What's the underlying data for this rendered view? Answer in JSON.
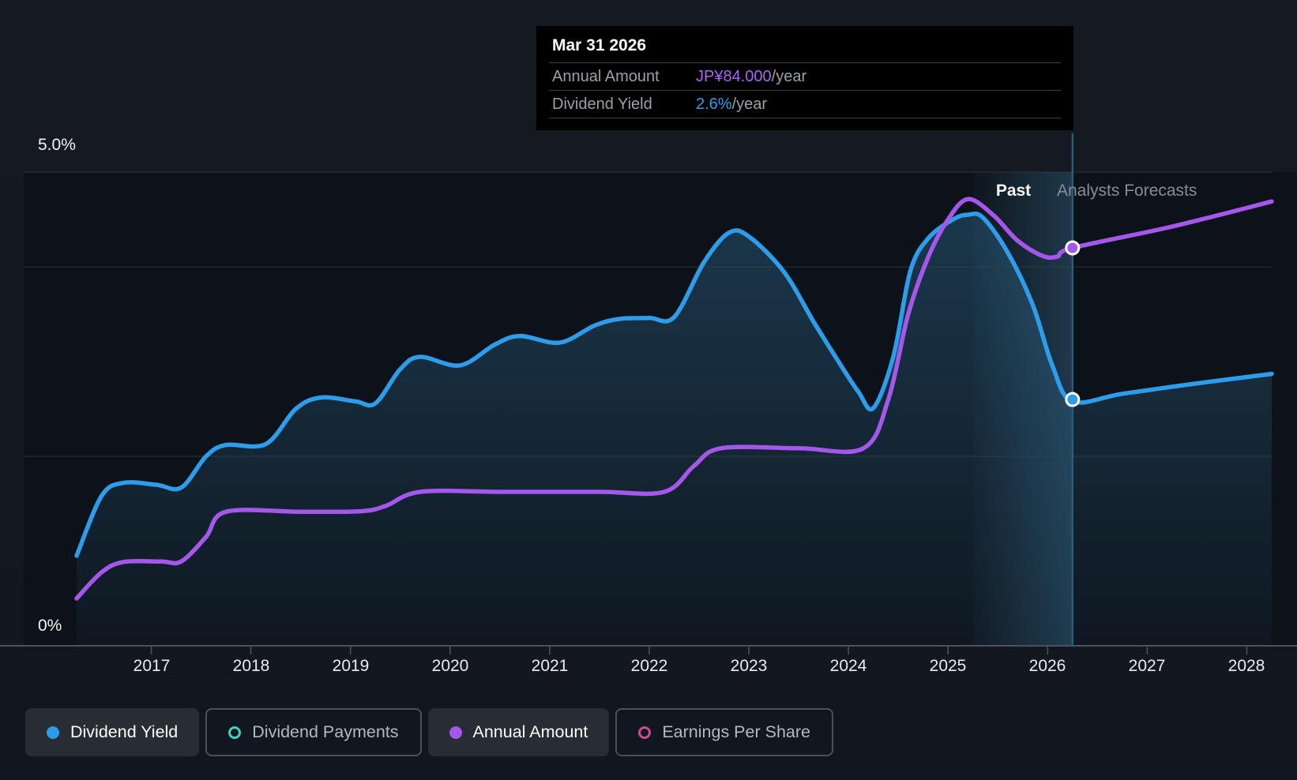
{
  "tooltip": {
    "title": "Mar 31 2026",
    "rows": [
      {
        "label": "Annual Amount",
        "value": "JP¥84.000",
        "suffix": "/year",
        "value_color": "#aa63f2"
      },
      {
        "label": "Dividend Yield",
        "value": "2.6%",
        "suffix": "/year",
        "value_color": "#2d9fe8"
      }
    ]
  },
  "annotations": {
    "past": "Past",
    "forecast": "Analysts Forecasts"
  },
  "y_axis": {
    "top_label": "5.0%",
    "bottom_label": "0%"
  },
  "legend": [
    {
      "label": "Dividend Yield",
      "color": "#2d9cea",
      "style": "filled",
      "active": true
    },
    {
      "label": "Dividend Payments",
      "color": "#3dd2c0",
      "style": "ring",
      "active": false
    },
    {
      "label": "Annual Amount",
      "color": "#a457eb",
      "style": "filled",
      "active": true
    },
    {
      "label": "Earnings Per Share",
      "color": "#cc4e88",
      "style": "ring",
      "active": false
    }
  ],
  "colors": {
    "background": "#14181f",
    "plot_background": "#0d1219",
    "gridline": "#3c434c",
    "axis": "#4d5359",
    "divider": "#2b5d77",
    "band_highlight": "#4691be",
    "yield_line": "#2d9cea",
    "amount_line": "#a457eb",
    "area_fill": "#3886b6",
    "marker_ring": "#ffffff"
  },
  "chart_data": {
    "type": "line",
    "title": "Dividend yield and annual amount — past and analysts forecasts",
    "x_domain": [
      2016.25,
      2028.25
    ],
    "x_ticks": [
      2017,
      2018,
      2019,
      2020,
      2021,
      2022,
      2023,
      2024,
      2025,
      2026,
      2027,
      2028
    ],
    "divider_x": 2026.25,
    "highlight_band": {
      "from": 2025.25,
      "to": 2026.25
    },
    "yield_axis": {
      "unit": "%",
      "min": 0,
      "max": 5,
      "gridlines_pct": [
        5,
        4,
        2
      ],
      "labeled": {
        "top": "5.0%",
        "bottom": "0%"
      }
    },
    "amount_axis": {
      "unit": "JP¥",
      "min": 0,
      "max": 100
    },
    "legend_position": "bottom-left",
    "series": [
      {
        "name": "Dividend Yield",
        "axis": "yield",
        "color": "#2d9cea",
        "style": "area-line",
        "visible": true,
        "past": [
          [
            2016.25,
            0.95
          ],
          [
            2016.5,
            1.58
          ],
          [
            2016.72,
            1.72
          ],
          [
            2017.05,
            1.7
          ],
          [
            2017.3,
            1.67
          ],
          [
            2017.55,
            2.0
          ],
          [
            2017.75,
            2.12
          ],
          [
            2018.15,
            2.13
          ],
          [
            2018.45,
            2.5
          ],
          [
            2018.7,
            2.62
          ],
          [
            2019.05,
            2.58
          ],
          [
            2019.25,
            2.56
          ],
          [
            2019.5,
            2.92
          ],
          [
            2019.7,
            3.05
          ],
          [
            2020.1,
            2.96
          ],
          [
            2020.45,
            3.18
          ],
          [
            2020.7,
            3.27
          ],
          [
            2021.1,
            3.2
          ],
          [
            2021.45,
            3.38
          ],
          [
            2021.7,
            3.45
          ],
          [
            2022.0,
            3.46
          ],
          [
            2022.25,
            3.47
          ],
          [
            2022.55,
            4.05
          ],
          [
            2022.8,
            4.36
          ],
          [
            2023.0,
            4.32
          ],
          [
            2023.35,
            3.95
          ],
          [
            2023.65,
            3.42
          ],
          [
            2023.9,
            3.0
          ],
          [
            2024.1,
            2.68
          ],
          [
            2024.25,
            2.51
          ],
          [
            2024.45,
            3.05
          ],
          [
            2024.62,
            3.95
          ],
          [
            2024.8,
            4.3
          ],
          [
            2025.05,
            4.5
          ],
          [
            2025.2,
            4.55
          ],
          [
            2025.35,
            4.52
          ],
          [
            2025.6,
            4.15
          ],
          [
            2025.85,
            3.6
          ],
          [
            2026.05,
            2.95
          ],
          [
            2026.25,
            2.58
          ]
        ],
        "forecast": [
          [
            2026.25,
            2.58
          ],
          [
            2026.75,
            2.66
          ],
          [
            2027.5,
            2.77
          ],
          [
            2028.25,
            2.87
          ]
        ]
      },
      {
        "name": "Annual Amount",
        "axis": "amount",
        "color": "#a457eb",
        "style": "line",
        "visible": true,
        "past": [
          [
            2016.25,
            10
          ],
          [
            2016.5,
            15.5
          ],
          [
            2016.72,
            17.7
          ],
          [
            2017.1,
            17.8
          ],
          [
            2017.3,
            17.8
          ],
          [
            2017.55,
            23
          ],
          [
            2017.75,
            28.3
          ],
          [
            2018.5,
            28.3
          ],
          [
            2019.1,
            28.4
          ],
          [
            2019.35,
            29.5
          ],
          [
            2019.7,
            32.5
          ],
          [
            2020.5,
            32.5
          ],
          [
            2021.5,
            32.5
          ],
          [
            2022.15,
            32.5
          ],
          [
            2022.45,
            38
          ],
          [
            2022.72,
            41.7
          ],
          [
            2023.5,
            41.7
          ],
          [
            2024.15,
            41.7
          ],
          [
            2024.4,
            52
          ],
          [
            2024.6,
            70
          ],
          [
            2024.8,
            82
          ],
          [
            2025.0,
            90
          ],
          [
            2025.2,
            94.3
          ],
          [
            2025.45,
            91
          ],
          [
            2025.7,
            85.5
          ],
          [
            2025.95,
            82.3
          ],
          [
            2026.1,
            82.2
          ],
          [
            2026.25,
            84
          ]
        ],
        "forecast": [
          [
            2026.25,
            84
          ],
          [
            2027.25,
            88.5
          ],
          [
            2028.25,
            93.8
          ]
        ]
      },
      {
        "name": "Dividend Payments",
        "color": "#3dd2c0",
        "visible": false
      },
      {
        "name": "Earnings Per Share",
        "color": "#cc4e88",
        "visible": false
      }
    ],
    "markers": [
      {
        "series": "Annual Amount",
        "x": 2026.25,
        "value": 84,
        "color": "#a457eb"
      },
      {
        "series": "Dividend Yield",
        "x": 2026.25,
        "value": 2.6,
        "color": "#2d9cea"
      }
    ]
  }
}
